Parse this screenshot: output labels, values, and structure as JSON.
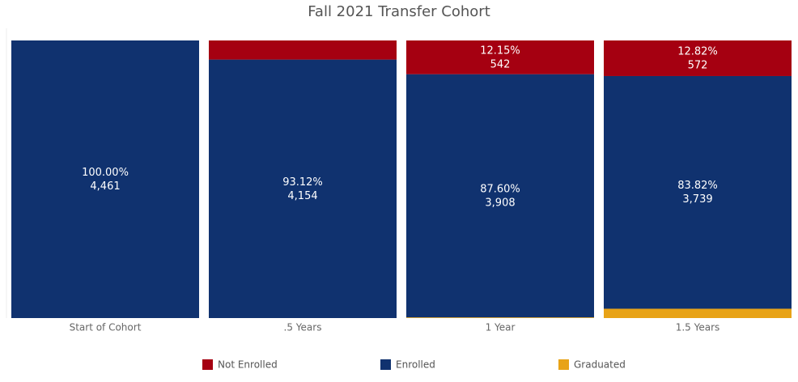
{
  "chart_data": {
    "type": "stacked_bar",
    "title": "Fall 2021 Transfer Cohort",
    "categories": [
      "Start of Cohort",
      ".5 Years",
      "1 Year",
      "1.5 Years"
    ],
    "ylim": [
      0,
      100
    ],
    "series": [
      {
        "name": "Not Enrolled",
        "color": "#a50011",
        "values": [
          0,
          6.88,
          12.15,
          12.82
        ],
        "value_labels": [
          null,
          null,
          "12.15%",
          "12.82%"
        ],
        "count_labels": [
          null,
          null,
          "542",
          "572"
        ]
      },
      {
        "name": "Enrolled",
        "color": "#10326f",
        "values": [
          100,
          93.12,
          87.6,
          83.82
        ],
        "value_labels": [
          "100.00%",
          "93.12%",
          "87.60%",
          "83.82%"
        ],
        "count_labels": [
          "4,461",
          "4,154",
          "3,908",
          "3,739"
        ]
      },
      {
        "name": "Graduated",
        "color": "#e8a317",
        "values": [
          0,
          0,
          0.25,
          3.36
        ],
        "value_labels": [
          null,
          null,
          null,
          null
        ],
        "count_labels": [
          null,
          null,
          null,
          null
        ]
      }
    ]
  }
}
